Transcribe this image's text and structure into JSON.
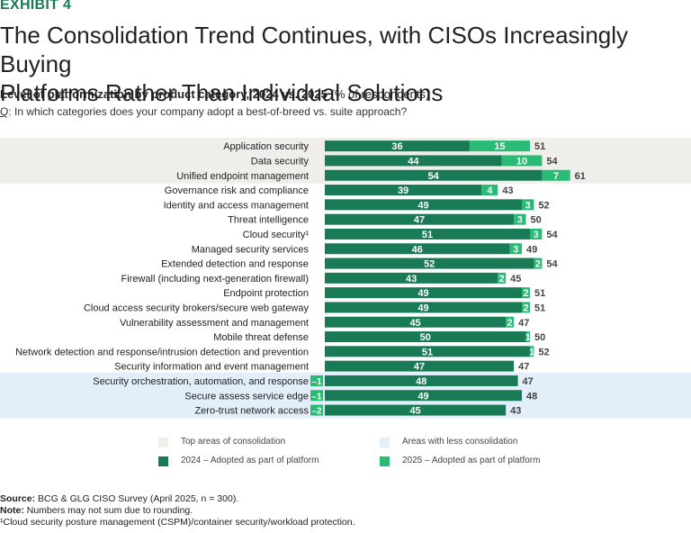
{
  "exhibit": "EXHIBIT 4",
  "title_line1": "The Consolidation Trend Continues, with CISOs Increasingly Buying",
  "title_line2": "Platforms Rather Than Individual Solutions",
  "subtitle_bold": "Level of platformization by product category, 2024 vs. 2025",
  "subtitle_unit": "(% of respondents)",
  "question_prefix": "Q",
  "question_text": ": In which categories does your company adopt a best-of-breed vs. suite approach?",
  "colors": {
    "dark_green": "#197a56",
    "light_green": "#29ba74",
    "consolidation_bg": "#f0eeea",
    "less_bg": "#e2eefa"
  },
  "chart_data": {
    "type": "bar",
    "orientation": "horizontal",
    "stacked": true,
    "categories": [
      "Application security",
      "Data security",
      "Unified endpoint management",
      "Governance risk and compliance",
      "Identity and access management",
      "Threat intelligence",
      "Cloud security¹",
      "Managed security services",
      "Extended detection and response",
      "Firewall (including next-generation firewall)",
      "Endpoint protection",
      "Cloud access security brokers/secure web gateway",
      "Vulnerability assessment and management",
      "Mobile threat defense",
      "Network detection and response/intrusion detection and prevention",
      "Security information and event management",
      "Security orchestration, automation, and response",
      "Secure assess service edge",
      "Zero-trust network access"
    ],
    "series": [
      {
        "name": "2024 – Adopted as part of platform",
        "values": [
          36,
          44,
          54,
          39,
          49,
          47,
          51,
          46,
          52,
          43,
          49,
          49,
          45,
          50,
          51,
          47,
          48,
          49,
          45
        ]
      },
      {
        "name": "2025 – Adopted as part of platform",
        "values": [
          15,
          10,
          7,
          4,
          3,
          3,
          3,
          3,
          2,
          2,
          2,
          2,
          2,
          1,
          1,
          0,
          -1,
          -1,
          -2
        ]
      }
    ],
    "change_labels": [
      "15",
      "10",
      "7",
      "4",
      "3",
      "3",
      "3",
      "3",
      "2",
      "2",
      "2",
      "2",
      "2",
      "1",
      "1",
      "",
      "–1",
      "–1",
      "–2"
    ],
    "totals": [
      51,
      54,
      61,
      43,
      52,
      50,
      54,
      49,
      54,
      45,
      51,
      51,
      47,
      50,
      52,
      47,
      47,
      48,
      43
    ],
    "groups": {
      "top_consolidation": [
        0,
        1,
        2
      ],
      "less_consolidation": [
        16,
        17,
        18
      ]
    },
    "xlim": [
      0,
      65
    ]
  },
  "legend": {
    "top": "Top areas of consolidation",
    "less": "Areas with less consolidation",
    "y2024": "2024 – Adopted as part of platform",
    "y2025": "2025 – Adopted as part of platform"
  },
  "source": {
    "label": "Source:",
    "text": " BCG & GLG CISO Survey (April 2025, n = 300).",
    "note_label": "Note:",
    "note_text": " Numbers may not sum due to rounding.",
    "footnote": "¹Cloud security posture management (CSPM)/container security/workload protection."
  }
}
